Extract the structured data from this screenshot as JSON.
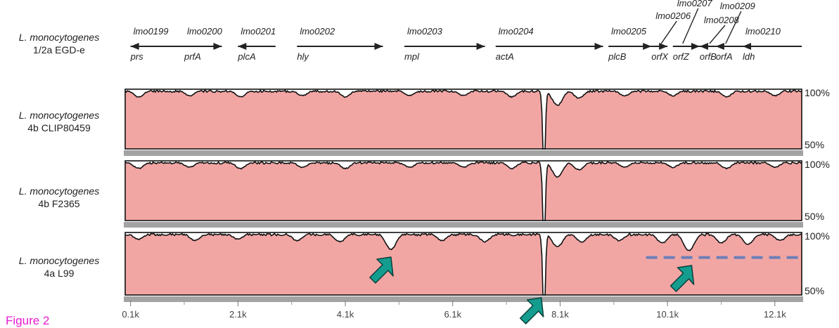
{
  "caption": "Figure 2",
  "reference": {
    "species": "L. monocytogenes",
    "strain": "1/2a EGD-e"
  },
  "chart_data": {
    "type": "area",
    "x_ticks": [
      "0.1k",
      "2.1k",
      "4.1k",
      "6.1k",
      "8.1k",
      "10.1k",
      "12.1k"
    ],
    "x_range": [
      0,
      12600
    ],
    "y_labels": [
      "100%",
      "50%"
    ],
    "ylim": [
      50,
      100
    ],
    "gap_at": 7800,
    "gene_map": [
      {
        "id": "lmo0199",
        "name": "prs",
        "start": 100,
        "end": 1100,
        "strand": "-"
      },
      {
        "id": "lmo0200",
        "name": "prfA",
        "start": 1100,
        "end": 1800,
        "strand": "+"
      },
      {
        "id": "lmo0201",
        "name": "plcA",
        "start": 2100,
        "end": 2800,
        "strand": "-"
      },
      {
        "id": "lmo0202",
        "name": "hly",
        "start": 3200,
        "end": 4800,
        "strand": "+"
      },
      {
        "id": "lmo0203",
        "name": "mpl",
        "start": 5200,
        "end": 6700,
        "strand": "+"
      },
      {
        "id": "lmo0204",
        "name": "actA",
        "start": 6900,
        "end": 8900,
        "strand": "+"
      },
      {
        "id": "lmo0205",
        "name": "plcB",
        "start": 9000,
        "end": 9800,
        "strand": "+"
      },
      {
        "id": "lmo0206",
        "name": "orfX",
        "start": 9800,
        "end": 10100,
        "strand": "+"
      },
      {
        "id": "lmo0207",
        "name": "orfZ",
        "start": 10200,
        "end": 10700,
        "strand": "+"
      },
      {
        "id": "lmo0208",
        "name": "orfB",
        "start": 10700,
        "end": 11000,
        "strand": "-"
      },
      {
        "id": "lmo0209",
        "name": "orfA",
        "start": 11000,
        "end": 11500,
        "strand": "-"
      },
      {
        "id": "lmo0210",
        "name": "ldh",
        "start": 11500,
        "end": 12600,
        "strand": "-"
      }
    ],
    "series": [
      {
        "species": "L. monocytogenes",
        "strain": "4b CLIP80459",
        "dips": [
          [
            250,
            94
          ],
          [
            1200,
            95
          ],
          [
            2150,
            94
          ],
          [
            3300,
            95
          ],
          [
            4100,
            94
          ],
          [
            5300,
            95
          ],
          [
            6300,
            95
          ],
          [
            7200,
            94
          ],
          [
            7800,
            50
          ],
          [
            8050,
            87
          ],
          [
            8450,
            93
          ],
          [
            9300,
            95
          ],
          [
            10200,
            95
          ],
          [
            11200,
            94
          ],
          [
            12100,
            95
          ]
        ]
      },
      {
        "species": "L. monocytogenes",
        "strain": "4b F2365",
        "dips": [
          [
            250,
            94
          ],
          [
            1200,
            95
          ],
          [
            2150,
            94
          ],
          [
            3300,
            95
          ],
          [
            4100,
            94
          ],
          [
            5300,
            95
          ],
          [
            6300,
            95
          ],
          [
            7200,
            94
          ],
          [
            7800,
            50
          ],
          [
            8050,
            87
          ],
          [
            8450,
            93
          ],
          [
            9300,
            95
          ],
          [
            10200,
            95
          ],
          [
            11200,
            94
          ],
          [
            12100,
            95
          ]
        ]
      },
      {
        "species": "L. monocytogenes",
        "strain": "4a L99",
        "dips": [
          [
            250,
            95
          ],
          [
            1300,
            94
          ],
          [
            2100,
            95
          ],
          [
            3200,
            94
          ],
          [
            4000,
            93
          ],
          [
            4950,
            87
          ],
          [
            5900,
            94
          ],
          [
            6700,
            93
          ],
          [
            7800,
            50
          ],
          [
            8050,
            89
          ],
          [
            8500,
            93
          ],
          [
            9200,
            94
          ],
          [
            10000,
            92
          ],
          [
            10500,
            86
          ],
          [
            11100,
            92
          ],
          [
            11600,
            91
          ],
          [
            12200,
            94
          ]
        ]
      }
    ],
    "annotations": {
      "arrows_at": [
        4950,
        7750,
        10550
      ],
      "dashed_line": {
        "x_start": 9700,
        "x_end": 12600,
        "y": 80
      }
    }
  }
}
